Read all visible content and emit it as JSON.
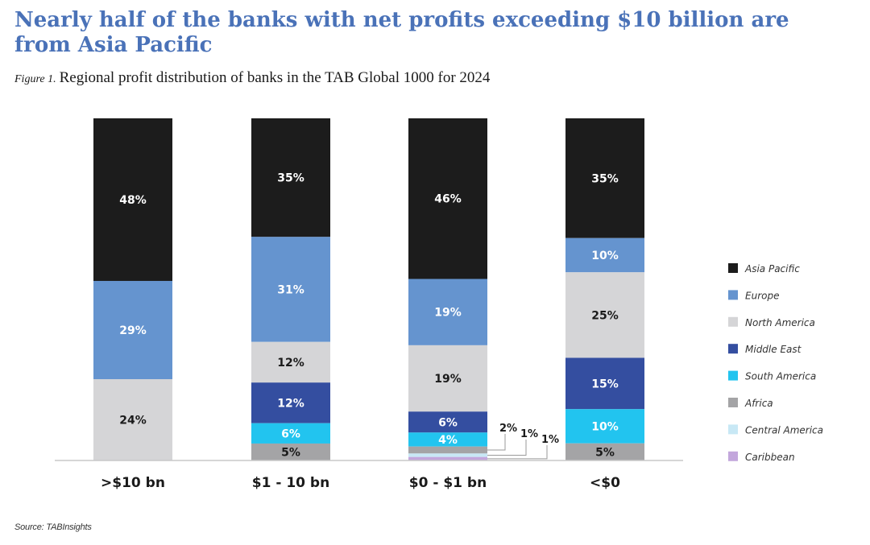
{
  "header": {
    "title": "Nearly half of the banks with net profits exceeding $10 billion are from Asia Pacific",
    "figure_prefix": "Figure 1.",
    "subtitle": "Regional profit distribution of banks in the TAB Global 1000 for 2024"
  },
  "footer": {
    "source": "Source: TABInsights"
  },
  "chart_data": {
    "type": "bar",
    "stacked": true,
    "normalized_percent": true,
    "categories": [
      ">$10 bn",
      "$1 - 10 bn",
      "$0 - $1 bn",
      "<$0"
    ],
    "series": [
      {
        "name": "Asia Pacific",
        "color": "#1c1c1c",
        "values": [
          48,
          35,
          46,
          35
        ],
        "labels": [
          "48%",
          "35%",
          "46%",
          "35%"
        ]
      },
      {
        "name": "Europe",
        "color": "#6594cf",
        "values": [
          29,
          31,
          19,
          10
        ],
        "labels": [
          "29%",
          "31%",
          "19%",
          "10%"
        ]
      },
      {
        "name": "North America",
        "color": "#d5d5d7",
        "values": [
          24,
          12,
          19,
          25
        ],
        "labels": [
          "24%",
          "12%",
          "19%",
          "25%"
        ]
      },
      {
        "name": "Middle East",
        "color": "#344ea0",
        "values": [
          0,
          12,
          6,
          15
        ],
        "labels": [
          "",
          "12%",
          "6%",
          "15%"
        ]
      },
      {
        "name": "South America",
        "color": "#22c4ef",
        "values": [
          0,
          6,
          4,
          10
        ],
        "labels": [
          "",
          "6%",
          "4%",
          "10%"
        ]
      },
      {
        "name": "Africa",
        "color": "#a4a4a6",
        "values": [
          0,
          5,
          2,
          5
        ],
        "labels": [
          "",
          "5%",
          "2%",
          "5%"
        ]
      },
      {
        "name": "Central America",
        "color": "#c8e8f5",
        "values": [
          0,
          0,
          1,
          0
        ],
        "labels": [
          "",
          "",
          "1%",
          ""
        ]
      },
      {
        "name": "Caribbean",
        "color": "#c3a7dc",
        "values": [
          0,
          0,
          1,
          0
        ],
        "labels": [
          "",
          "",
          "1%",
          ""
        ]
      }
    ],
    "xlabel": "",
    "ylabel": "",
    "ylim": [
      0,
      100
    ],
    "grid": false,
    "legend_position": "right"
  }
}
